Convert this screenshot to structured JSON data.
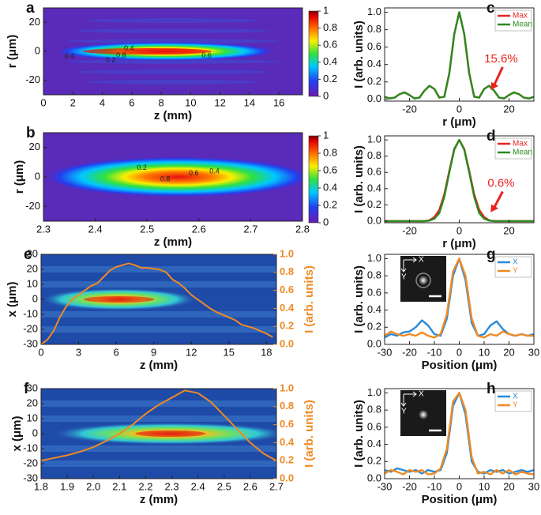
{
  "chart_data": [
    {
      "type": "heatmap",
      "label": "a",
      "xlabel": "z (mm)",
      "ylabel": "r (μm)",
      "xlim": [
        0,
        17.6
      ],
      "xticks": [
        0,
        2,
        4,
        6,
        8,
        10,
        12,
        14,
        16
      ],
      "ylim": [
        -30,
        30
      ],
      "yticks": [
        -20,
        0,
        20
      ],
      "clim": [
        0,
        1
      ],
      "colorbar_ticks": [
        0,
        0.2,
        0.4,
        0.6,
        0.8,
        1
      ],
      "contour_labels": [
        "0.4",
        "0.2",
        "0.8",
        "0.4",
        "0.6"
      ]
    },
    {
      "type": "heatmap",
      "label": "b",
      "xlabel": "z (mm)",
      "ylabel": "r (μm)",
      "xlim": [
        2.3,
        2.8
      ],
      "xticks": [
        2.3,
        2.4,
        2.5,
        2.6,
        2.7,
        2.8
      ],
      "ylim": [
        -30,
        30
      ],
      "yticks": [
        -20,
        0,
        20
      ],
      "clim": [
        0,
        1
      ],
      "colorbar_ticks": [
        0,
        0.2,
        0.4,
        0.6,
        0.8,
        1
      ],
      "contour_labels": [
        "0.2",
        "0.8",
        "0.6",
        "0.4"
      ]
    },
    {
      "type": "line",
      "label": "c",
      "xlabel": "r (μm)",
      "ylabel": "I (arb. units)",
      "xlim": [
        -30,
        30
      ],
      "xticks": [
        -20,
        0,
        20
      ],
      "ylim": [
        -0.02,
        1.05
      ],
      "yticks": [
        {
          "value": 0,
          "label": "0.0"
        },
        0.2,
        0.4,
        0.6,
        0.8,
        {
          "value": 1,
          "label": "1.0"
        }
      ],
      "legend": "upper right",
      "annotation": "15.6%",
      "x": [
        -30,
        -28,
        -26,
        -24,
        -22,
        -20,
        -18,
        -16,
        -14,
        -12,
        -10,
        -8,
        -6,
        -4,
        -2,
        0,
        2,
        4,
        6,
        8,
        10,
        12,
        14,
        16,
        18,
        20,
        22,
        24,
        26,
        28,
        30
      ],
      "series": [
        {
          "name": "Max",
          "color": "#e8231e",
          "values": [
            0.03,
            0.01,
            0.02,
            0.06,
            0.08,
            0.05,
            0.01,
            0.02,
            0.1,
            0.156,
            0.12,
            0.02,
            0.03,
            0.3,
            0.75,
            1,
            0.75,
            0.3,
            0.03,
            0.02,
            0.12,
            0.156,
            0.1,
            0.02,
            0.01,
            0.05,
            0.08,
            0.06,
            0.02,
            0.01,
            0.03
          ]
        },
        {
          "name": "Mean",
          "color": "#2a8a1e",
          "values": [
            0.03,
            0.01,
            0.02,
            0.06,
            0.08,
            0.05,
            0.01,
            0.02,
            0.1,
            0.156,
            0.12,
            0.02,
            0.03,
            0.3,
            0.75,
            1,
            0.75,
            0.3,
            0.03,
            0.02,
            0.12,
            0.156,
            0.1,
            0.02,
            0.01,
            0.05,
            0.08,
            0.06,
            0.02,
            0.01,
            0.03
          ]
        }
      ]
    },
    {
      "type": "line",
      "label": "d",
      "xlabel": "r (μm)",
      "ylabel": "I (arb. units)",
      "xlim": [
        -30,
        30
      ],
      "xticks": [
        -20,
        0,
        20
      ],
      "ylim": [
        -0.02,
        1.05
      ],
      "yticks": [
        {
          "value": 0,
          "label": "0.0"
        },
        0.2,
        0.4,
        0.6,
        0.8,
        {
          "value": 1,
          "label": "1.0"
        }
      ],
      "legend": "upper right",
      "annotation": "0.6%",
      "x": [
        -30,
        -28,
        -26,
        -24,
        -22,
        -20,
        -18,
        -16,
        -14,
        -12,
        -10,
        -8,
        -6,
        -4,
        -2,
        0,
        2,
        4,
        6,
        8,
        10,
        12,
        14,
        16,
        18,
        20,
        22,
        24,
        26,
        28,
        30
      ],
      "series": [
        {
          "name": "Max",
          "color": "#e8231e",
          "values": [
            0,
            0,
            0,
            0,
            0,
            0,
            0,
            0,
            0,
            0.01,
            0.05,
            0.14,
            0.33,
            0.62,
            0.89,
            1,
            0.89,
            0.62,
            0.33,
            0.14,
            0.05,
            0.01,
            0,
            0,
            0,
            0,
            0,
            0,
            0,
            0,
            0
          ]
        },
        {
          "name": "Mean",
          "color": "#2a8a1e",
          "values": [
            0,
            0,
            0,
            0,
            0,
            0,
            0,
            0,
            0,
            0.006,
            0.03,
            0.1,
            0.3,
            0.6,
            0.88,
            1,
            0.88,
            0.6,
            0.3,
            0.1,
            0.03,
            0.006,
            0,
            0,
            0,
            0,
            0,
            0,
            0,
            0,
            0
          ]
        }
      ]
    },
    {
      "type": "heatmap",
      "label": "e",
      "xlabel": "z (mm)",
      "ylabel": "x (μm)",
      "y2label": "I (arb. units)",
      "xlim": [
        0,
        18.8
      ],
      "xticks": [
        0,
        3,
        6,
        9,
        12,
        15,
        18
      ],
      "ylim": [
        -30,
        30
      ],
      "yticks": [
        -30,
        -20,
        -10,
        0,
        10,
        20,
        30
      ],
      "y2lim": [
        0,
        1
      ],
      "y2ticks": [
        {
          "value": 0,
          "label": "0.0"
        },
        0.2,
        0.4,
        0.6,
        0.8,
        {
          "value": 1,
          "label": "1.0"
        }
      ],
      "x": [
        0,
        0.5,
        1,
        1.5,
        2,
        2.5,
        3,
        3.5,
        4,
        4.5,
        5,
        5.5,
        6,
        6.5,
        7,
        7.5,
        8,
        8.5,
        9,
        9.5,
        10,
        10.5,
        11,
        11.5,
        12,
        12.5,
        13,
        13.5,
        14,
        14.5,
        15,
        15.5,
        16,
        16.5,
        17,
        17.5,
        18,
        18.5
      ],
      "series": [
        {
          "color": "#f08a24",
          "axis": "y2",
          "values": [
            0,
            0.05,
            0.15,
            0.3,
            0.42,
            0.5,
            0.55,
            0.6,
            0.65,
            0.68,
            0.75,
            0.82,
            0.86,
            0.88,
            0.9,
            0.88,
            0.85,
            0.85,
            0.84,
            0.83,
            0.8,
            0.72,
            0.68,
            0.62,
            0.55,
            0.5,
            0.45,
            0.4,
            0.36,
            0.33,
            0.3,
            0.27,
            0.22,
            0.2,
            0.18,
            0.15,
            0.12,
            0.08
          ]
        }
      ]
    },
    {
      "type": "heatmap",
      "label": "f",
      "xlabel": "z (mm)",
      "ylabel": "x (μm)",
      "y2label": "I (arb. units)",
      "xlim": [
        1.8,
        2.7
      ],
      "xticks": [
        1.8,
        1.9,
        {
          "value": 2,
          "label": "2.0"
        },
        2.1,
        2.2,
        2.3,
        2.4,
        2.5,
        2.6,
        2.7
      ],
      "ylim": [
        -30,
        30
      ],
      "yticks": [
        -30,
        -20,
        -10,
        0,
        10,
        20,
        30
      ],
      "y2lim": [
        0,
        1
      ],
      "y2ticks": [
        {
          "value": 0,
          "label": "0.0"
        },
        0.2,
        0.4,
        0.6,
        0.8,
        {
          "value": 1,
          "label": "1.0"
        }
      ],
      "x": [
        1.8,
        1.85,
        1.9,
        1.95,
        2,
        2.05,
        2.1,
        2.15,
        2.2,
        2.25,
        2.3,
        2.35,
        2.4,
        2.45,
        2.5,
        2.55,
        2.6,
        2.65,
        2.7
      ],
      "series": [
        {
          "color": "#f08a24",
          "axis": "y2",
          "values": [
            0.2,
            0.23,
            0.26,
            0.3,
            0.35,
            0.42,
            0.5,
            0.6,
            0.72,
            0.82,
            0.9,
            0.98,
            0.95,
            0.85,
            0.7,
            0.55,
            0.4,
            0.28,
            0.2
          ]
        }
      ]
    },
    {
      "type": "line",
      "label": "g",
      "xlabel": "Position (μm)",
      "ylabel": "I (arb. units)",
      "xlim": [
        -30,
        30
      ],
      "xticks": [
        -30,
        -20,
        -10,
        0,
        10,
        20,
        30
      ],
      "ylim": [
        0,
        1.05
      ],
      "yticks": [
        {
          "value": 0,
          "label": "0.0"
        },
        0.2,
        0.4,
        0.6,
        0.8,
        {
          "value": 1,
          "label": "1.0"
        }
      ],
      "legend": "upper right",
      "inset_axes": [
        "X",
        "Y"
      ],
      "inset_ring": true,
      "x": [
        -30,
        -27.5,
        -25,
        -22.5,
        -20,
        -17.5,
        -15,
        -12.5,
        -10,
        -7.5,
        -5,
        -2.5,
        0,
        2.5,
        5,
        7.5,
        10,
        12.5,
        15,
        17.5,
        20,
        22.5,
        25,
        27.5,
        30
      ],
      "series": [
        {
          "name": "X",
          "color": "#2a8ad8",
          "values": [
            0.08,
            0.12,
            0.1,
            0.14,
            0.15,
            0.2,
            0.28,
            0.22,
            0.12,
            0.1,
            0.3,
            0.8,
            1,
            0.75,
            0.25,
            0.1,
            0.12,
            0.22,
            0.27,
            0.18,
            0.12,
            0.1,
            0.12,
            0.1,
            0.12
          ]
        },
        {
          "name": "Y",
          "color": "#f08a24",
          "values": [
            0.1,
            0.15,
            0.12,
            0.1,
            0.12,
            0.1,
            0.14,
            0.1,
            0.08,
            0.12,
            0.35,
            0.85,
            1,
            0.8,
            0.3,
            0.1,
            0.08,
            0.12,
            0.1,
            0.15,
            0.12,
            0.1,
            0.12,
            0.1,
            0.1
          ]
        }
      ]
    },
    {
      "type": "line",
      "label": "h",
      "xlabel": "Position (μm)",
      "ylabel": "I (arb. units)",
      "xlim": [
        -30,
        30
      ],
      "xticks": [
        -30,
        -20,
        -10,
        0,
        10,
        20,
        30
      ],
      "ylim": [
        0,
        1.05
      ],
      "yticks": [
        {
          "value": 0,
          "label": "0.0"
        },
        0.2,
        0.4,
        0.6,
        0.8,
        {
          "value": 1,
          "label": "1.0"
        }
      ],
      "legend": "upper right",
      "inset_axes": [
        "X",
        "Y"
      ],
      "inset_ring": false,
      "x": [
        -30,
        -27.5,
        -25,
        -22.5,
        -20,
        -17.5,
        -15,
        -12.5,
        -10,
        -7.5,
        -5,
        -2.5,
        0,
        2.5,
        5,
        7.5,
        10,
        12.5,
        15,
        17.5,
        20,
        22.5,
        25,
        27.5,
        30
      ],
      "series": [
        {
          "name": "X",
          "color": "#2a8ad8",
          "values": [
            0.1,
            0.08,
            0.12,
            0.1,
            0.08,
            0.1,
            0.06,
            0.1,
            0.08,
            0.1,
            0.3,
            0.85,
            1,
            0.75,
            0.2,
            0.08,
            0.06,
            0.1,
            0.08,
            0.1,
            0.06,
            0.08,
            0.1,
            0.08,
            0.1
          ]
        },
        {
          "name": "Y",
          "color": "#f08a24",
          "values": [
            0.06,
            0.1,
            0.08,
            0.05,
            0.1,
            0.08,
            0.1,
            0.05,
            0.06,
            0.12,
            0.35,
            0.9,
            1,
            0.8,
            0.25,
            0.06,
            0.08,
            0.05,
            0.1,
            0.06,
            0.1,
            0.05,
            0.08,
            0.06,
            0.05
          ]
        }
      ]
    }
  ]
}
